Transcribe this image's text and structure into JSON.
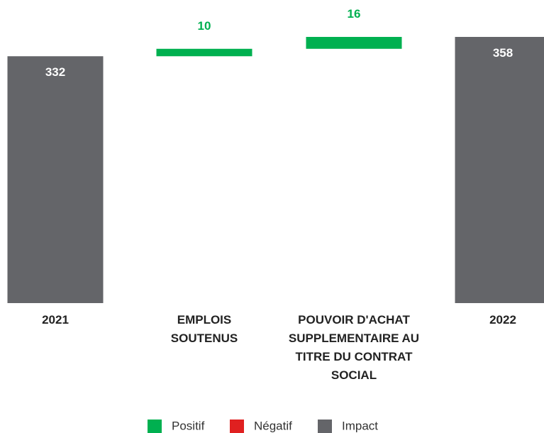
{
  "chart_data": {
    "type": "waterfall",
    "categories": [
      "2021",
      "EMPLOIS SOUTENUS",
      "POUVOIR D'ACHAT SUPPLEMENTAIRE AU TITRE DU CONTRAT SOCIAL",
      "2022"
    ],
    "values": [
      332,
      10,
      16,
      358
    ],
    "measures": [
      "total",
      "relative",
      "relative",
      "total"
    ],
    "legend": [
      {
        "name": "Positif",
        "color": "#00b050"
      },
      {
        "name": "Négatif",
        "color": "#e02020"
      },
      {
        "name": "Impact",
        "color": "#646569"
      }
    ]
  }
}
